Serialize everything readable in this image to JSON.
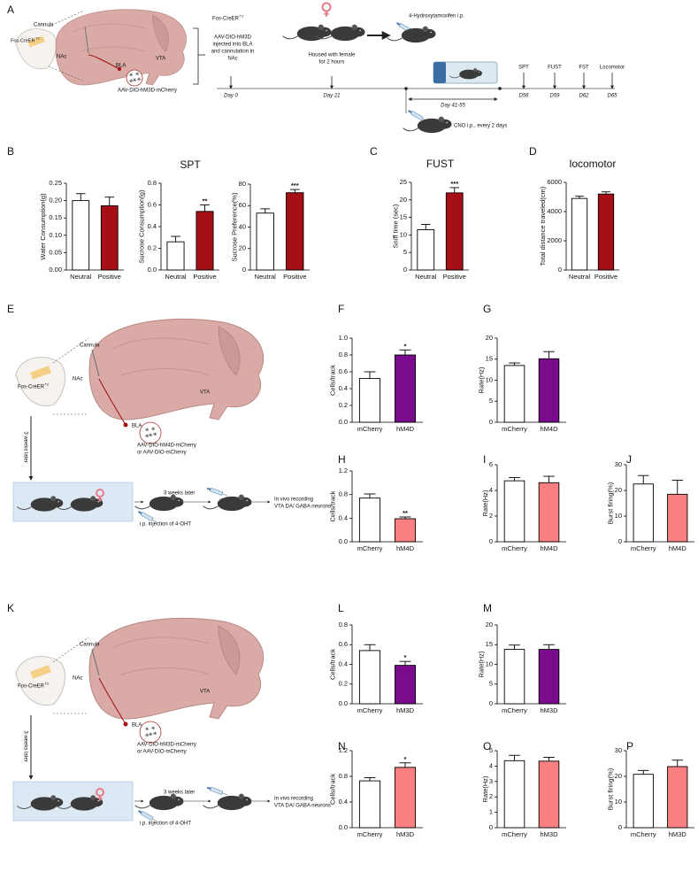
{
  "panel_letters": [
    "A",
    "B",
    "C",
    "D",
    "E",
    "F",
    "G",
    "H",
    "I",
    "J",
    "K",
    "L",
    "M",
    "N",
    "O",
    "P"
  ],
  "diagram_a": {
    "cannula": "Cannula",
    "mouse_line": "Fos-CreER",
    "mouse_line_sup": "T2",
    "nac": "NAc",
    "bla": "BLA",
    "vta": "VTA",
    "virus": "AAV-DIO-hM3D-mCherry",
    "step1_line": "Fos-CreER",
    "step1_sup": "T2",
    "step1_text": [
      "AAV-DIO-hM3D",
      "injected into BLA",
      "and cannulation in",
      "NAc"
    ],
    "step2_text": [
      "Housed with female",
      "for 2 hours"
    ],
    "step3_text": "4-Hydroxytamoxifen i.p.",
    "days": [
      "Day 0",
      "Day 21"
    ],
    "tests": [
      "SPT",
      "FUST",
      "FST",
      "Locomotor"
    ],
    "test_days": [
      "D56",
      "D59",
      "D62",
      "D65"
    ],
    "cno_period": "Day  41-55",
    "cno": "CNO i.p., every 2 days"
  },
  "diagram_e": {
    "cannula": "Cannula",
    "mouse_line": "Fos-CreER",
    "mouse_line_sup": "T2",
    "nac": "NAc",
    "bla": "BLA",
    "vta": "VTA",
    "virus": [
      "AAV-DIO-hM4D-mCherry",
      "or AAV-DIO-mCherry"
    ],
    "wait_vertical": "3 weeks later",
    "wait": "3 weeks later",
    "injection": "i.p. injection of 4-OHT",
    "recording": [
      "In vivo recording",
      "VTA DA/ GABA neurons"
    ]
  },
  "diagram_k": {
    "cannula": "Cannula",
    "mouse_line": "Fos-CreER",
    "mouse_line_sup": "T2",
    "nac": "NAc",
    "bla": "BLA",
    "vta": "VTA",
    "virus": [
      "AAV-DIO-hM3D-mCherry",
      "or AAV-DIO-mCherry"
    ],
    "wait_vertical": "3 weeks later",
    "wait": "3 weeks later",
    "injection": "i.p. injection of 4-OHT",
    "recording": [
      "In vivo recording",
      "VTA DA/ GABA neurons"
    ]
  },
  "chart_data": [
    {
      "type": "bar",
      "ylabel": "Water Consumption(g)",
      "categories": [
        "Neutral",
        "Positive"
      ],
      "values": [
        0.2,
        0.185
      ],
      "errors": [
        0.02,
        0.025
      ],
      "colors": [
        "#ffffff",
        "#a50f15"
      ],
      "significance": [
        null,
        null
      ],
      "ylim": [
        0,
        0.25
      ],
      "yticks": [
        {
          "value": 0,
          "label": "0.00"
        },
        {
          "value": 0.05,
          "label": "0.05"
        },
        {
          "value": 0.1,
          "label": "0.10"
        },
        {
          "value": 0.15,
          "label": "0.15"
        },
        {
          "value": 0.2,
          "label": "0.20"
        },
        {
          "value": 0.25,
          "label": "0.25"
        }
      ]
    },
    {
      "type": "bar",
      "title": "SPT",
      "ylabel": "Sucrose Consumption(g)",
      "categories": [
        "Neutral",
        "Positive"
      ],
      "values": [
        0.26,
        0.54
      ],
      "errors": [
        0.05,
        0.06
      ],
      "colors": [
        "#ffffff",
        "#a50f15"
      ],
      "significance": [
        null,
        "**"
      ],
      "ylim": [
        0,
        0.8
      ],
      "yticks": [
        {
          "value": 0,
          "label": "0.0"
        },
        0.2,
        0.4,
        0.6,
        0.8
      ]
    },
    {
      "type": "bar",
      "ylabel": "Sucrose Preference(%)",
      "categories": [
        "Neutral",
        "Positive"
      ],
      "values": [
        53,
        72
      ],
      "errors": [
        4,
        3
      ],
      "colors": [
        "#ffffff",
        "#a50f15"
      ],
      "significance": [
        null,
        "***"
      ],
      "ylim": [
        0,
        80
      ],
      "yticks": [
        0,
        20,
        40,
        60,
        80
      ]
    },
    {
      "type": "bar",
      "title": "FUST",
      "ylabel": "Sniff time (sec)",
      "categories": [
        "Neutral",
        "Positive"
      ],
      "values": [
        11.5,
        22
      ],
      "errors": [
        1.5,
        1.5
      ],
      "colors": [
        "#ffffff",
        "#a50f15"
      ],
      "significance": [
        null,
        "***"
      ],
      "ylim": [
        0,
        25
      ],
      "yticks": [
        0,
        5,
        10,
        15,
        20,
        25
      ]
    },
    {
      "type": "bar",
      "title": "locomotor",
      "ylabel": "Total distance traveled(cm)",
      "categories": [
        "Neutral",
        "Positive"
      ],
      "values": [
        4900,
        5200
      ],
      "errors": [
        150,
        150
      ],
      "colors": [
        "#ffffff",
        "#a50f15"
      ],
      "significance": [
        null,
        null
      ],
      "ylim": [
        0,
        6000
      ],
      "yticks": [
        0,
        2000,
        4000,
        6000
      ]
    },
    {
      "type": "bar",
      "ylabel": "Cells/track",
      "categories": [
        "mCherry",
        "hM4D"
      ],
      "values": [
        0.52,
        0.8
      ],
      "errors": [
        0.08,
        0.06
      ],
      "colors": [
        "#ffffff",
        "#7a0b8c"
      ],
      "significance": [
        null,
        "*"
      ],
      "ylim": [
        0,
        1
      ],
      "yticks": [
        {
          "value": 0,
          "label": "0.0"
        },
        0.2,
        0.4,
        0.6,
        0.8,
        {
          "value": 1,
          "label": "1.0"
        }
      ]
    },
    {
      "type": "bar",
      "ylabel": "Rate(Hz)",
      "categories": [
        "mCherry",
        "hM4D"
      ],
      "values": [
        13.5,
        15.1
      ],
      "errors": [
        0.6,
        1.7
      ],
      "colors": [
        "#ffffff",
        "#7a0b8c"
      ],
      "significance": [
        null,
        null
      ],
      "ylim": [
        0,
        20
      ],
      "yticks": [
        0,
        5,
        10,
        15,
        20
      ]
    },
    {
      "type": "bar",
      "ylabel": "Cells/track",
      "categories": [
        "mCherry",
        "hM4D"
      ],
      "values": [
        0.74,
        0.39
      ],
      "errors": [
        0.07,
        0.03
      ],
      "colors": [
        "#ffffff",
        "#f98080"
      ],
      "significance": [
        null,
        "**"
      ],
      "ylim": [
        0,
        1.2
      ],
      "yticks": [
        {
          "value": 0,
          "label": "0.0"
        },
        0.4,
        0.8,
        1.2
      ]
    },
    {
      "type": "bar",
      "ylabel": "Rate(Hz)",
      "categories": [
        "mCherry",
        "hM4D"
      ],
      "values": [
        4.75,
        4.6
      ],
      "errors": [
        0.25,
        0.5
      ],
      "colors": [
        "#ffffff",
        "#f98080"
      ],
      "significance": [
        null,
        null
      ],
      "ylim": [
        0,
        6
      ],
      "yticks": [
        0,
        2,
        4,
        6
      ]
    },
    {
      "type": "bar",
      "ylabel": "Burst firing(%)",
      "categories": [
        "mCherry",
        "hM4D"
      ],
      "values": [
        22.5,
        18.5
      ],
      "errors": [
        3.3,
        5.5
      ],
      "colors": [
        "#ffffff",
        "#f98080"
      ],
      "significance": [
        null,
        null
      ],
      "ylim": [
        0,
        30
      ],
      "yticks": [
        0,
        10,
        20,
        30
      ]
    },
    {
      "type": "bar",
      "ylabel": "Cells/track",
      "categories": [
        "mCherry",
        "hM3D"
      ],
      "values": [
        0.54,
        0.39
      ],
      "errors": [
        0.06,
        0.04
      ],
      "colors": [
        "#ffffff",
        "#7a0b8c"
      ],
      "significance": [
        null,
        "*"
      ],
      "ylim": [
        0,
        0.8
      ],
      "yticks": [
        {
          "value": 0,
          "label": "0.0"
        },
        0.2,
        0.4,
        0.6,
        0.8
      ]
    },
    {
      "type": "bar",
      "ylabel": "Rate(Hz)",
      "categories": [
        "mCherry",
        "hM3D"
      ],
      "values": [
        13.8,
        13.8
      ],
      "errors": [
        1.1,
        1.2
      ],
      "colors": [
        "#ffffff",
        "#7a0b8c"
      ],
      "significance": [
        null,
        null
      ],
      "ylim": [
        0,
        20
      ],
      "yticks": [
        0,
        5,
        10,
        15,
        20
      ]
    },
    {
      "type": "bar",
      "ylabel": "Cells/track",
      "categories": [
        "mCherry",
        "hM3D"
      ],
      "values": [
        0.73,
        0.94
      ],
      "errors": [
        0.05,
        0.07
      ],
      "colors": [
        "#ffffff",
        "#f98080"
      ],
      "significance": [
        null,
        "*"
      ],
      "ylim": [
        0,
        1.2
      ],
      "yticks": [
        {
          "value": 0,
          "label": "0.0"
        },
        0.4,
        0.8,
        1.2
      ]
    },
    {
      "type": "bar",
      "ylabel": "Rate(Hz)",
      "categories": [
        "mCherry",
        "hM3D"
      ],
      "values": [
        4.35,
        4.32
      ],
      "errors": [
        0.35,
        0.25
      ],
      "colors": [
        "#ffffff",
        "#f98080"
      ],
      "significance": [
        null,
        null
      ],
      "ylim": [
        0,
        5
      ],
      "yticks": [
        0,
        1,
        2,
        3,
        4,
        5
      ]
    },
    {
      "type": "bar",
      "ylabel": "Burst firing(%)",
      "categories": [
        "mCherry",
        "hM3D"
      ],
      "values": [
        20.8,
        23.8
      ],
      "errors": [
        1.5,
        2.5
      ],
      "colors": [
        "#ffffff",
        "#f98080"
      ],
      "significance": [
        null,
        null
      ],
      "ylim": [
        0,
        30
      ],
      "yticks": [
        0,
        10,
        20,
        30
      ]
    }
  ]
}
